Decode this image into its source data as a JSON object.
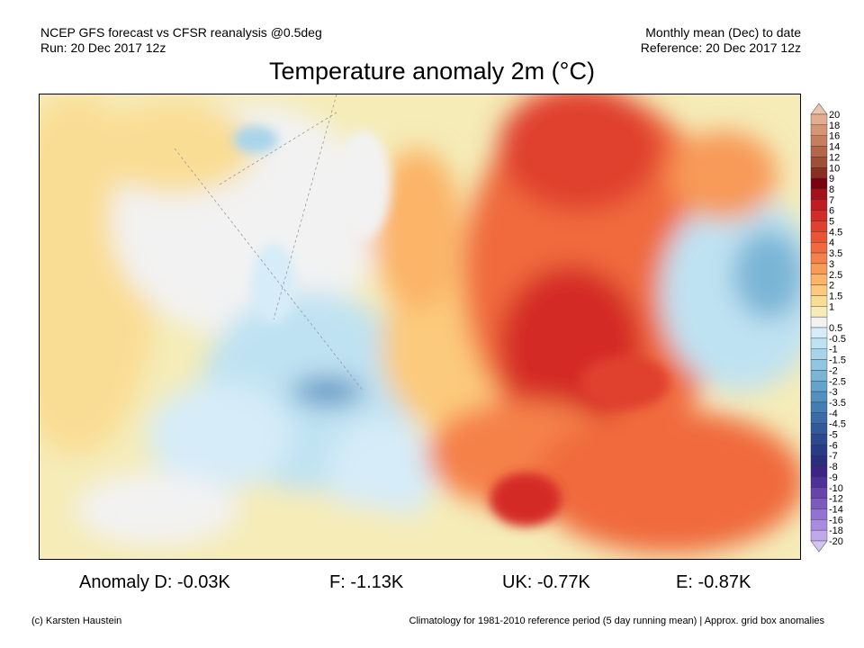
{
  "header": {
    "left_line1": "NCEP GFS forecast vs CFSR reanalysis @0.5deg",
    "left_line2": "Run: 20 Dec 2017 12z",
    "right_line1": "Monthly mean (Dec) to date",
    "right_line2": "Reference: 20 Dec 2017 12z",
    "title": "Temperature anomaly 2m (°C)"
  },
  "colorbar": {
    "labels": [
      "20",
      "18",
      "16",
      "14",
      "12",
      "10",
      "9",
      "8",
      "7",
      "6",
      "5",
      "4.5",
      "4",
      "3.5",
      "3",
      "2.5",
      "2",
      "1.5",
      "1",
      "0.5",
      "-0.5",
      "-1",
      "-1.5",
      "-2",
      "-2.5",
      "-3",
      "-3.5",
      "-4",
      "-4.5",
      "-5",
      "-6",
      "-7",
      "-8",
      "-9",
      "-10",
      "-12",
      "-14",
      "-16",
      "-18",
      "-20"
    ],
    "top_arrow_color": "#eec3ae",
    "bottom_arrow_color": "#d2c4f2",
    "colors": [
      "#e4ac90",
      "#d69575",
      "#c67e5f",
      "#b4664a",
      "#a04e38",
      "#8a2e22",
      "#7a0010",
      "#a5111a",
      "#c01d22",
      "#d42a28",
      "#e0402e",
      "#e85535",
      "#f06a3e",
      "#f5814a",
      "#f89a58",
      "#fbb468",
      "#fcca7c",
      "#fadd94",
      "#f5ecb8",
      "#f2f2f2",
      "#d6ecf8",
      "#bfe2f2",
      "#a8d4ea",
      "#91c6e0",
      "#7ab5d6",
      "#64a3cb",
      "#5390c0",
      "#447cb4",
      "#3a6aa8",
      "#33599c",
      "#2c4990",
      "#283b86",
      "#2a2e7e",
      "#3a2488",
      "#4e3098",
      "#6644ac",
      "#7b5ac0",
      "#9272d2",
      "#a98ce0",
      "#c0a8ec"
    ]
  },
  "anomalies": {
    "d": "Anomaly D: -0.03K",
    "f": "F: -1.13K",
    "uk": "UK: -0.77K",
    "e": "E: -0.87K"
  },
  "footer": {
    "credit": "(c) Karsten Haustein",
    "note": "Climatology for 1981-2010 reference period (5 day running mean) | Approx. grid box anomalies"
  }
}
